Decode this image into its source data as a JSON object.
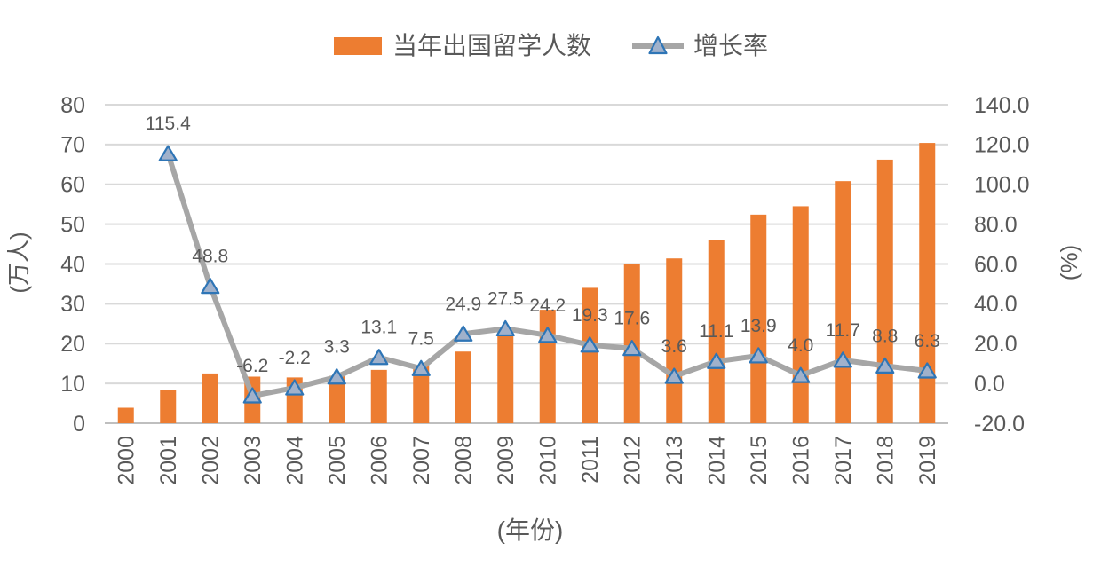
{
  "chart_data": {
    "type": "combo-bar-line",
    "title": "",
    "categories": [
      "2000",
      "2001",
      "2002",
      "2003",
      "2004",
      "2005",
      "2006",
      "2007",
      "2008",
      "2009",
      "2010",
      "2011",
      "2012",
      "2013",
      "2014",
      "2015",
      "2016",
      "2017",
      "2018",
      "2019"
    ],
    "series": [
      {
        "name": "当年出国留学人数",
        "type": "bar",
        "axis": "left",
        "color": "#ED7D31",
        "values": [
          3.9,
          8.4,
          12.5,
          11.7,
          11.5,
          11.9,
          13.4,
          14.4,
          18.0,
          22.9,
          28.5,
          34.0,
          40.0,
          41.4,
          46.0,
          52.4,
          54.5,
          60.8,
          66.2,
          70.4
        ]
      },
      {
        "name": "增长率",
        "type": "line",
        "axis": "right",
        "color": "#A6A6A6",
        "marker": {
          "shape": "triangle",
          "fill": "#A0B1CB",
          "stroke": "#2E75B6"
        },
        "values": [
          null,
          115.4,
          48.8,
          -6.2,
          -2.2,
          3.3,
          13.1,
          7.5,
          24.9,
          27.5,
          24.2,
          19.3,
          17.6,
          3.6,
          11.1,
          13.9,
          4.0,
          11.7,
          8.8,
          6.3
        ],
        "labels": [
          "",
          "115.4",
          "48.8",
          "-6.2",
          "-2.2",
          "3.3",
          "13.1",
          "7.5",
          "24.9",
          "27.5",
          "24.2",
          "19.3",
          "17.6",
          "3.6",
          "11.1",
          "13.9",
          "4.0",
          "11.7",
          "8.8",
          "6.3"
        ]
      }
    ],
    "left_axis": {
      "title": "(万人)",
      "min": 0,
      "max": 80,
      "step": 10,
      "ticks": [
        "80",
        "70",
        "60",
        "50",
        "40",
        "30",
        "20",
        "10",
        "0"
      ]
    },
    "right_axis": {
      "title": "(%)",
      "min": -20,
      "max": 140,
      "step": 20,
      "ticks": [
        "140.0",
        "120.0",
        "100.0",
        "80.0",
        "60.0",
        "40.0",
        "20.0",
        "0.0",
        "-20.0"
      ]
    },
    "x_axis": {
      "title": "(年份)"
    },
    "grid": true,
    "legend_position": "top",
    "colors": {
      "text": "#595959",
      "gridline": "#D9D9D9",
      "axis_line": "#BFBFBF",
      "background": "#FFFFFF"
    }
  }
}
